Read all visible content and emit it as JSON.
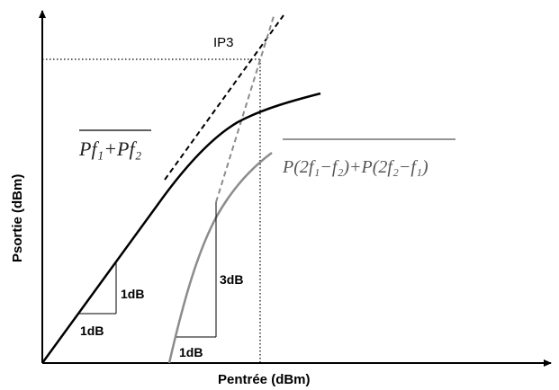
{
  "labels": {
    "y_axis": "Psortie (dBm)",
    "x_axis": "Pentrée (dBm)",
    "ip3": "IP3",
    "fundamental_expr": "Pf₁+Pf₂",
    "intermod_expr": "P(2f₁−f₂)+P(2f₂−f₁)",
    "slope_fund_dx": "1dB",
    "slope_fund_dy": "1dB",
    "slope_im3_dx": "1dB",
    "slope_im3_dy": "3dB"
  },
  "colors": {
    "fundamental": "#000000",
    "intermod": "#8c8c8c",
    "axis": "#000000"
  }
}
